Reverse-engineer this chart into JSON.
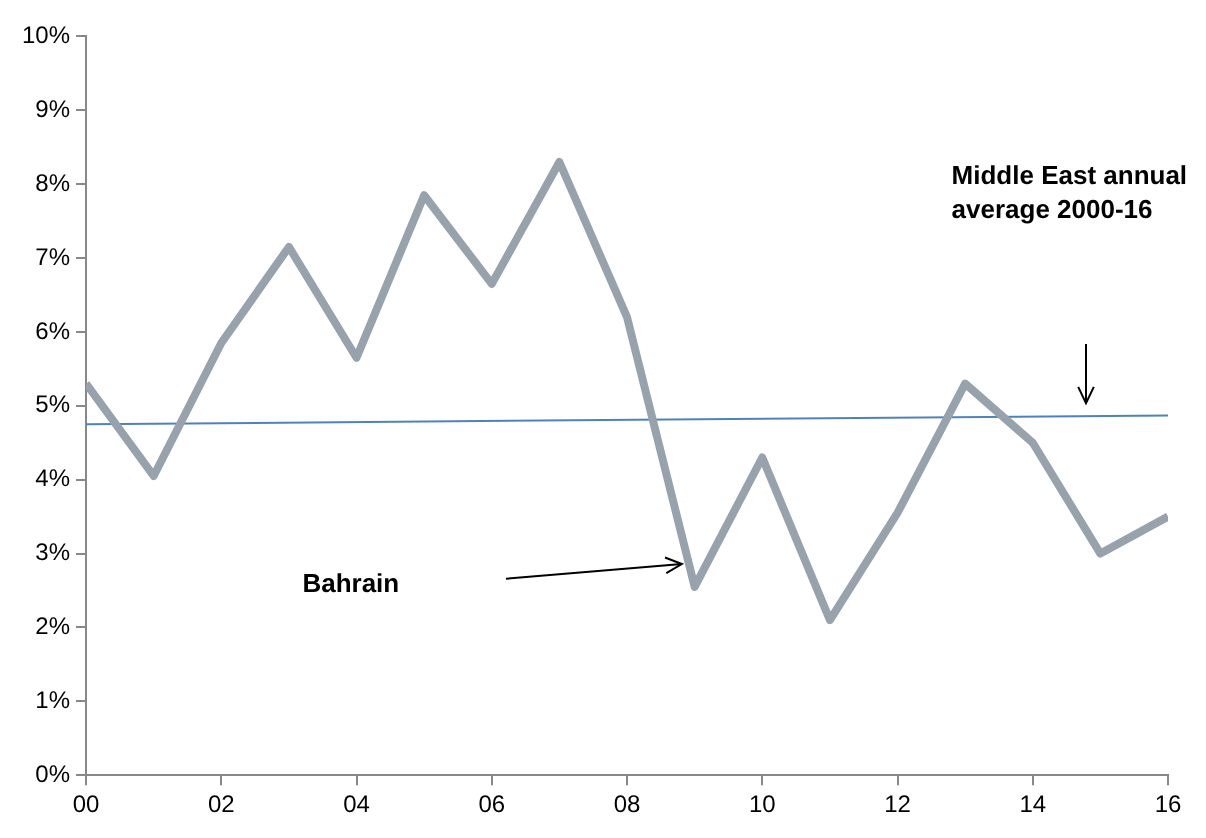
{
  "chart_data": {
    "type": "line",
    "x": [
      2000,
      2001,
      2002,
      2003,
      2004,
      2005,
      2006,
      2007,
      2008,
      2009,
      2010,
      2011,
      2012,
      2013,
      2014,
      2015,
      2016
    ],
    "series": [
      {
        "color": "#98a2ac",
        "values": [
          5.3,
          4.05,
          5.85,
          7.15,
          5.65,
          7.85,
          6.65,
          8.3,
          6.2,
          2.55,
          4.3,
          2.1,
          3.55,
          5.3,
          4.5,
          3.0,
          3.5
        ]
      },
      {
        "color": "#4f81bd",
        "x": [
          2000,
          2016
        ],
        "values": [
          4.75,
          4.87
        ]
      }
    ],
    "xlim": [
      2000,
      2016
    ],
    "xticks": [
      {
        "value": 2000,
        "label": "00"
      },
      {
        "value": 2002,
        "label": "02"
      },
      {
        "value": 2004,
        "label": "04"
      },
      {
        "value": 2006,
        "label": "06"
      },
      {
        "value": 2008,
        "label": "08"
      },
      {
        "value": 2010,
        "label": "10"
      },
      {
        "value": 2012,
        "label": "12"
      },
      {
        "value": 2014,
        "label": "14"
      },
      {
        "value": 2016,
        "label": "16"
      }
    ],
    "ylim": [
      0,
      10
    ],
    "yticks": [
      {
        "value": 0,
        "label": "0%"
      },
      {
        "value": 1,
        "label": "1%"
      },
      {
        "value": 2,
        "label": "2%"
      },
      {
        "value": 3,
        "label": "3%"
      },
      {
        "value": 4,
        "label": "4%"
      },
      {
        "value": 5,
        "label": "5%"
      },
      {
        "value": 6,
        "label": "6%"
      },
      {
        "value": 7,
        "label": "7%"
      },
      {
        "value": 8,
        "label": "8%"
      },
      {
        "value": 9,
        "label": "9%"
      },
      {
        "value": 10,
        "label": "10%"
      }
    ],
    "annotations": [
      "Bahrain",
      "Middle East annual average 2000-16"
    ],
    "grid": false,
    "legend": false,
    "marker": "none",
    "line_style": "solid"
  }
}
